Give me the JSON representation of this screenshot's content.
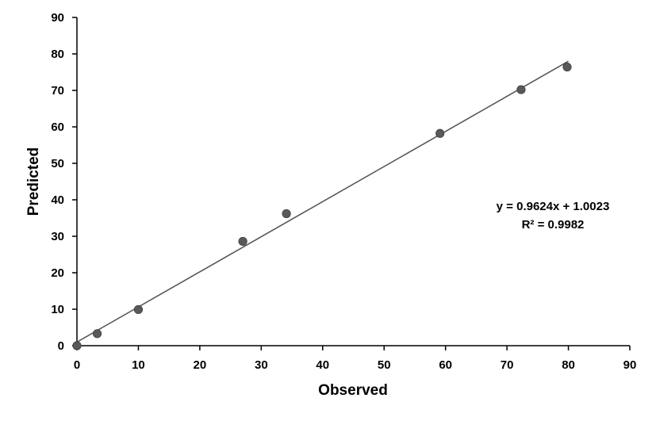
{
  "chart_data": {
    "type": "scatter",
    "xlabel": "Observed",
    "ylabel": "Predicted",
    "xlim": [
      0,
      90
    ],
    "ylim": [
      0,
      90
    ],
    "x_ticks": [
      "0",
      "10",
      "20",
      "30",
      "40",
      "50",
      "60",
      "70",
      "80",
      "90"
    ],
    "y_ticks": [
      "0",
      "10",
      "20",
      "30",
      "40",
      "50",
      "60",
      "70",
      "80",
      "90"
    ],
    "grid": false,
    "points": [
      {
        "x": 0,
        "y": 0
      },
      {
        "x": 3.3,
        "y": 3.3
      },
      {
        "x": 10,
        "y": 9.9
      },
      {
        "x": 27,
        "y": 28.6
      },
      {
        "x": 34.1,
        "y": 36.2
      },
      {
        "x": 59.1,
        "y": 58.2
      },
      {
        "x": 72.3,
        "y": 70.2
      },
      {
        "x": 79.8,
        "y": 76.4
      }
    ],
    "trendline": {
      "type": "linear",
      "slope": 0.9624,
      "intercept": 1.0023,
      "x_range": [
        0,
        80
      ],
      "equation": "y = 0.9624x + 1.0023",
      "r2_label": "R² = 0.9982"
    },
    "colors": {
      "marker": "#595959",
      "line": "#595959",
      "axis": "#000000"
    }
  }
}
